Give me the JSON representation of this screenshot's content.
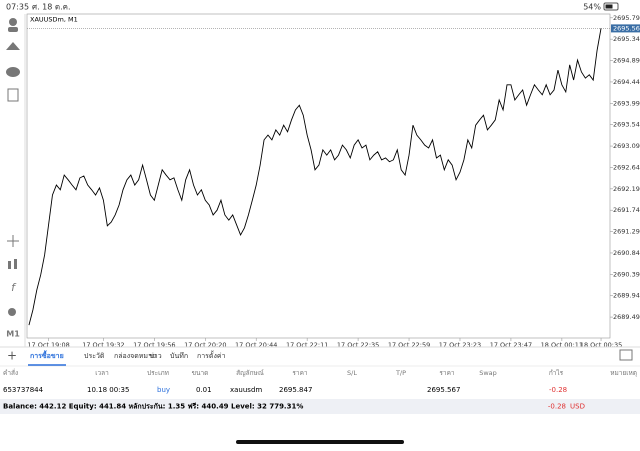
{
  "status_bar": {
    "time": "07:35",
    "date": "ศ. 18 ต.ค.",
    "battery": "54%"
  },
  "toolbar": {
    "timeframe": "M1"
  },
  "chart_data": {
    "type": "line",
    "title": "XAUUSDm, M1",
    "color": "#000000",
    "categories": [
      null,
      null,
      null,
      null,
      null,
      "17 Oct 19:08",
      null,
      null,
      null,
      null,
      null,
      null,
      null,
      null,
      null,
      null,
      null,
      null,
      null,
      "17 Oct 19:32",
      null,
      null,
      null,
      null,
      null,
      null,
      null,
      null,
      null,
      null,
      null,
      null,
      "17 Oct 19:56",
      null,
      null,
      null,
      null,
      null,
      null,
      null,
      null,
      null,
      null,
      null,
      null,
      "17 Oct 20:20",
      null,
      null,
      null,
      null,
      null,
      null,
      null,
      null,
      null,
      null,
      null,
      null,
      "17 Oct 20:44",
      null,
      null,
      null,
      null,
      null,
      null,
      null,
      null,
      null,
      null,
      null,
      null,
      "17 Oct 22:11",
      null,
      null,
      null,
      null,
      null,
      null,
      null,
      null,
      null,
      null,
      null,
      null,
      "17 Oct 22:35",
      null,
      null,
      null,
      null,
      null,
      null,
      null,
      null,
      null,
      null,
      null,
      null,
      "17 Oct 22:59",
      null,
      null,
      null,
      null,
      null,
      null,
      null,
      null,
      null,
      null,
      null,
      null,
      "17 Oct 23:23",
      null,
      null,
      null,
      null,
      null,
      null,
      null,
      null,
      null,
      null,
      null,
      null,
      "17 Oct 23:47",
      null,
      null,
      null,
      null,
      null,
      null,
      null,
      null,
      null,
      null,
      null,
      null,
      "18 Oct 00:11",
      null,
      null,
      null,
      null,
      null,
      null,
      null,
      null,
      null,
      "18 Oct 00:35"
    ],
    "values": [
      2689.32,
      2689.64,
      2690.06,
      2690.38,
      2690.8,
      2691.43,
      2692.06,
      2692.27,
      2692.17,
      2692.48,
      2692.38,
      2692.27,
      2692.17,
      2692.42,
      2692.46,
      2692.27,
      2692.17,
      2692.06,
      2692.21,
      2691.95,
      2691.41,
      2691.49,
      2691.64,
      2691.85,
      2692.17,
      2692.38,
      2692.48,
      2692.27,
      2692.38,
      2692.69,
      2692.38,
      2692.06,
      2691.95,
      2692.27,
      2692.59,
      2692.48,
      2692.38,
      2692.42,
      2692.17,
      2691.95,
      2692.38,
      2692.59,
      2692.27,
      2692.06,
      2692.17,
      2691.95,
      2691.85,
      2691.64,
      2691.74,
      2691.95,
      2691.64,
      2691.53,
      2691.64,
      2691.43,
      2691.22,
      2691.37,
      2691.64,
      2691.95,
      2692.27,
      2692.69,
      2693.22,
      2693.32,
      2693.22,
      2693.43,
      2693.32,
      2693.53,
      2693.39,
      2693.64,
      2693.85,
      2693.95,
      2693.74,
      2693.32,
      2693.01,
      2692.59,
      2692.69,
      2693.01,
      2692.9,
      2693.01,
      2692.8,
      2692.9,
      2693.11,
      2693.01,
      2692.84,
      2693.11,
      2693.22,
      2693.05,
      2693.11,
      2692.8,
      2692.9,
      2692.97,
      2692.8,
      2692.84,
      2692.76,
      2692.8,
      2693.01,
      2692.59,
      2692.48,
      2692.9,
      2693.53,
      2693.32,
      2693.22,
      2693.11,
      2693.05,
      2693.22,
      2692.84,
      2692.9,
      2692.59,
      2692.8,
      2692.69,
      2692.38,
      2692.54,
      2692.8,
      2693.22,
      2693.05,
      2693.53,
      2693.64,
      2693.74,
      2693.43,
      2693.53,
      2693.64,
      2694.06,
      2693.85,
      2694.38,
      2694.38,
      2694.06,
      2694.17,
      2694.27,
      2693.95,
      2694.17,
      2694.38,
      2694.27,
      2694.17,
      2694.38,
      2694.17,
      2694.27,
      2694.69,
      2694.38,
      2694.23,
      2694.8,
      2694.48,
      2694.9,
      2694.65,
      2694.52,
      2694.59,
      2694.48,
      2695.11,
      2695.57
    ],
    "ylim": [
      2689.05,
      2695.87
    ],
    "yticks": [
      {
        "value": 2689.49,
        "label": "2689.490"
      },
      {
        "value": 2689.94,
        "label": "2689.940"
      },
      {
        "value": 2690.39,
        "label": "2690.390"
      },
      {
        "value": 2690.84,
        "label": "2690.840"
      },
      {
        "value": 2691.29,
        "label": "2691.290"
      },
      {
        "value": 2691.74,
        "label": "2691.740"
      },
      {
        "value": 2692.19,
        "label": "2692.190"
      },
      {
        "value": 2692.64,
        "label": "2692.640"
      },
      {
        "value": 2693.09,
        "label": "2693.090"
      },
      {
        "value": 2693.54,
        "label": "2693.540"
      },
      {
        "value": 2693.99,
        "label": "2693.990"
      },
      {
        "value": 2694.44,
        "label": "2694.440"
      },
      {
        "value": 2694.89,
        "label": "2694.890"
      },
      {
        "value": 2695.34,
        "label": "2695.340"
      },
      {
        "value": 2695.79,
        "label": "2695.790"
      }
    ],
    "current_price": 2695.567,
    "grid": false
  },
  "tabs": [
    "การซื้อขาย",
    "ประวัติ",
    "กล่องจดหมาย",
    "ข่าว",
    "บันทึก",
    "การตั้งค่า"
  ],
  "table": {
    "header": [
      "คำสั่ง",
      "เวลา",
      "ประเภท",
      "ขนาด",
      "สัญลักษณ์",
      "ราคา",
      "S/L",
      "T/P",
      "ราคา",
      "Swap",
      "กำไร",
      "หมายเหตุ"
    ],
    "row": {
      "order": "653737844",
      "time": "10.18 00:35",
      "type": "buy",
      "volume": "0.01",
      "symbol": "xauusdm",
      "open_price": "2695.847",
      "current_price": "2695.567",
      "profit": "-0.28"
    }
  },
  "footer": {
    "summary": "Balance: 442.12 Equity: 441.84 หลักประกัน: 1.35 ฟรี: 440.49 Level: 32 779.31%",
    "profit": "-0.28",
    "currency": "USD"
  }
}
